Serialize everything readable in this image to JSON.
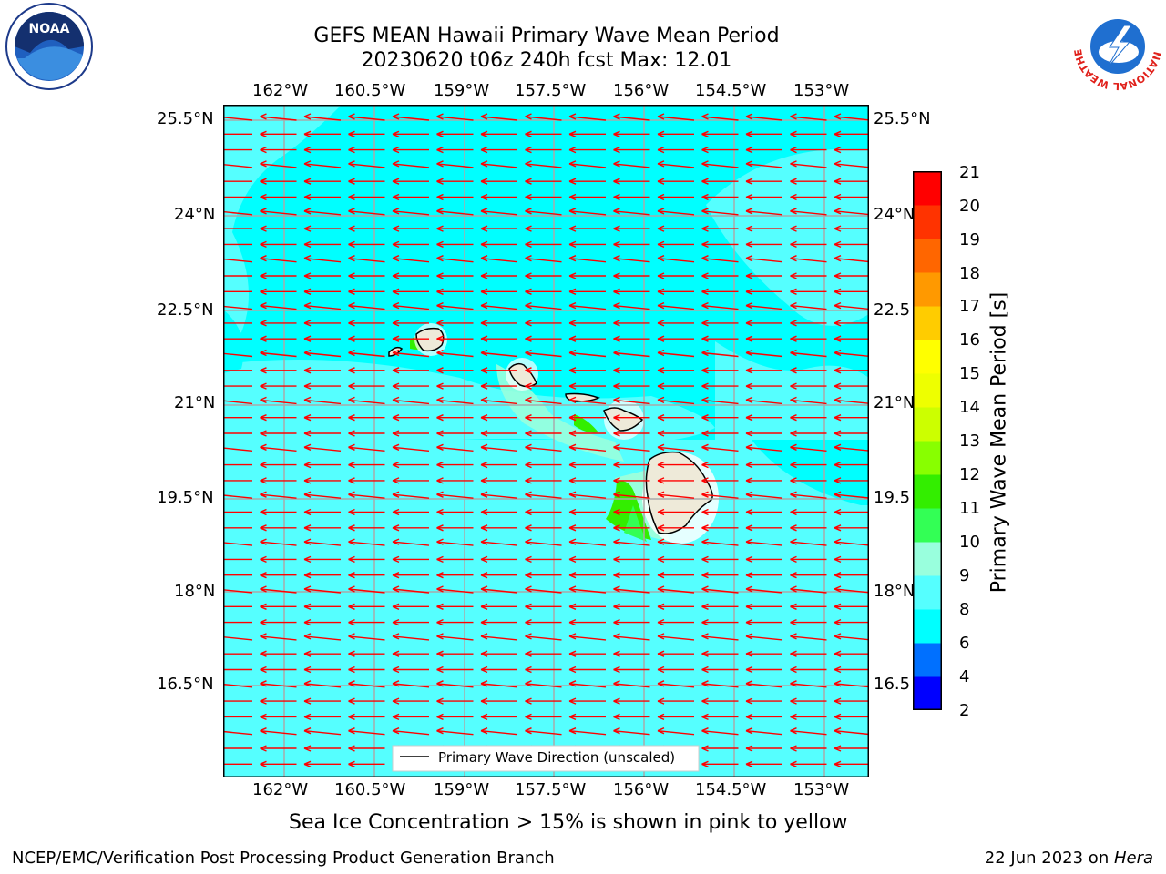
{
  "title": {
    "line1": "GEFS MEAN Hawaii Primary Wave Mean Period",
    "line2": "20230620 t06z 240h fcst   Max: 12.01"
  },
  "axes": {
    "lon_ticks": [
      "162°W",
      "160.5°W",
      "159°W",
      "157.5°W",
      "156°W",
      "154.5°W",
      "153°W"
    ],
    "lat_ticks": [
      "25.5°N",
      "24°N",
      "22.5°N",
      "21°N",
      "19.5°N",
      "18°N",
      "16.5°N"
    ],
    "lat_ticks_right": [
      "25.5°N",
      "24°N",
      "22.5",
      "21°N",
      "19.5",
      "18°N",
      "16.5"
    ]
  },
  "legend": {
    "label": "Primary Wave Direction (unscaled)"
  },
  "colorbar": {
    "label": "Primary Wave Mean Period [s]",
    "ticks": [
      "2",
      "4",
      "6",
      "8",
      "9",
      "10",
      "11",
      "12",
      "13",
      "14",
      "15",
      "16",
      "17",
      "18",
      "19",
      "20",
      "21"
    ],
    "colors": [
      "#0000ff",
      "#0070ff",
      "#00ffff",
      "#55ffff",
      "#99ffdd",
      "#33ff55",
      "#33ee00",
      "#88ff00",
      "#ccff00",
      "#eeff00",
      "#ffff00",
      "#ffcc00",
      "#ff9900",
      "#ff6600",
      "#ff3300",
      "#ff0000"
    ]
  },
  "field_colors": {
    "low": "#00ffff",
    "mid": "#55ffff",
    "land": "#eeead9",
    "arrow": "#ff0000"
  },
  "note": "Sea Ice Concentration > 15% is shown in pink to yellow",
  "footer": {
    "left": "NCEP/EMC/Verification Post Processing Product Generation Branch",
    "date": "22 Jun 2023 on ",
    "host": "Hera"
  },
  "logos": {
    "left": "NOAA",
    "right": "NATIONAL WEATHER SERVICE"
  }
}
